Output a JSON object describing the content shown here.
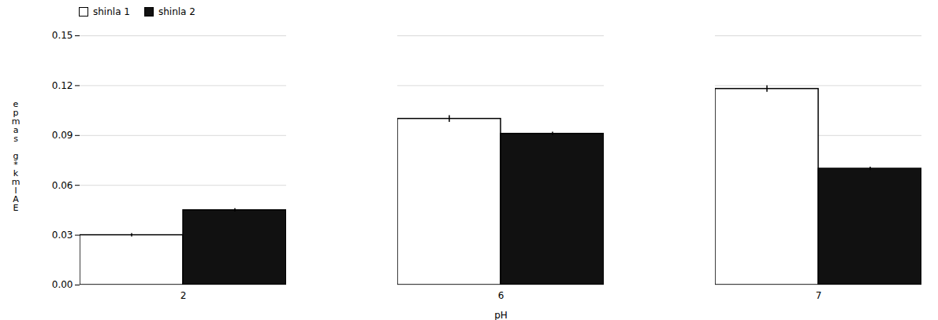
{
  "chart_data": {
    "type": "bar",
    "categories": [
      "2",
      "6",
      "7"
    ],
    "series": [
      {
        "name": "shinla 1",
        "color": "#ffffff",
        "values": [
          0.03,
          0.1,
          0.118
        ],
        "errors": [
          0.001,
          0.002,
          0.002
        ]
      },
      {
        "name": "shinla 2",
        "color": "#111111",
        "values": [
          0.045,
          0.091,
          0.07
        ],
        "errors": [
          0.001,
          0.001,
          0.001
        ]
      }
    ],
    "xlabel": "pH",
    "ylabel": "e\np\nm\na\ns\n \ng\n*\nk\nm\nl\nA\nE",
    "ylim": [
      0.0,
      0.15
    ],
    "yticks": [
      {
        "value": 0,
        "label": "0.00"
      },
      0.03,
      0.06,
      0.09,
      0.12,
      0.15
    ],
    "grid": true,
    "legend": "upper left"
  }
}
